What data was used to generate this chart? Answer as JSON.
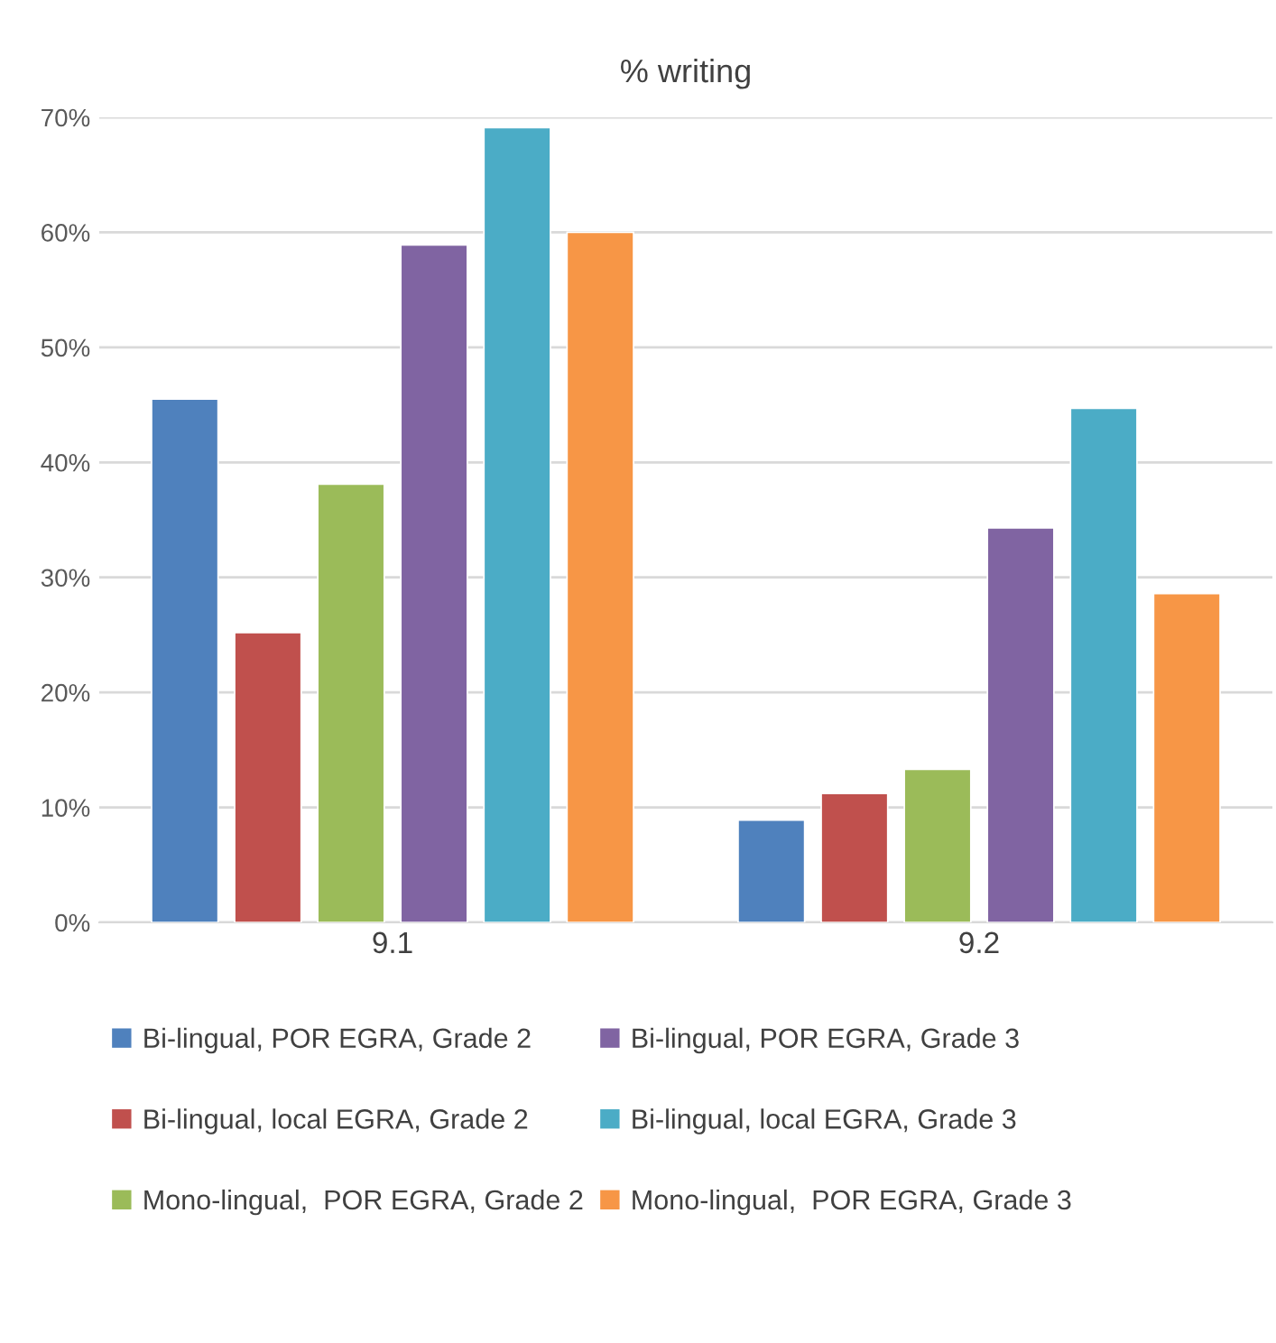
{
  "chart_data": {
    "type": "bar",
    "title": "% writing",
    "categories": [
      "9.1",
      "9.2"
    ],
    "series": [
      {
        "name": "Bi-lingual, POR EGRA, Grade 2",
        "color": "#4f81bd",
        "values": [
          45.5,
          8.9
        ]
      },
      {
        "name": "Bi-lingual, local EGRA, Grade 2",
        "color": "#c0504d",
        "values": [
          25.2,
          11.2
        ]
      },
      {
        "name": "Mono-lingual,  POR EGRA, Grade 2",
        "color": "#9bbb59",
        "values": [
          38.1,
          13.3
        ]
      },
      {
        "name": "Bi-lingual, POR EGRA, Grade 3",
        "color": "#8064a2",
        "values": [
          58.9,
          34.3
        ]
      },
      {
        "name": "Bi-lingual, local EGRA, Grade 3",
        "color": "#4bacc6",
        "values": [
          69.1,
          44.7
        ]
      },
      {
        "name": "Mono-lingual,  POR EGRA, Grade 3",
        "color": "#f79646",
        "values": [
          60.0,
          28.6
        ]
      }
    ],
    "ylim": [
      0,
      70
    ],
    "yticks": [
      {
        "value": 0,
        "label": "0%"
      },
      {
        "value": 10,
        "label": "10%"
      },
      {
        "value": 20,
        "label": "20%"
      },
      {
        "value": 30,
        "label": "30%"
      },
      {
        "value": 40,
        "label": "40%"
      },
      {
        "value": 50,
        "label": "50%"
      },
      {
        "value": 60,
        "label": "60%"
      },
      {
        "value": 70,
        "label": "70%"
      }
    ],
    "grid": "y",
    "legend": "bottom"
  }
}
